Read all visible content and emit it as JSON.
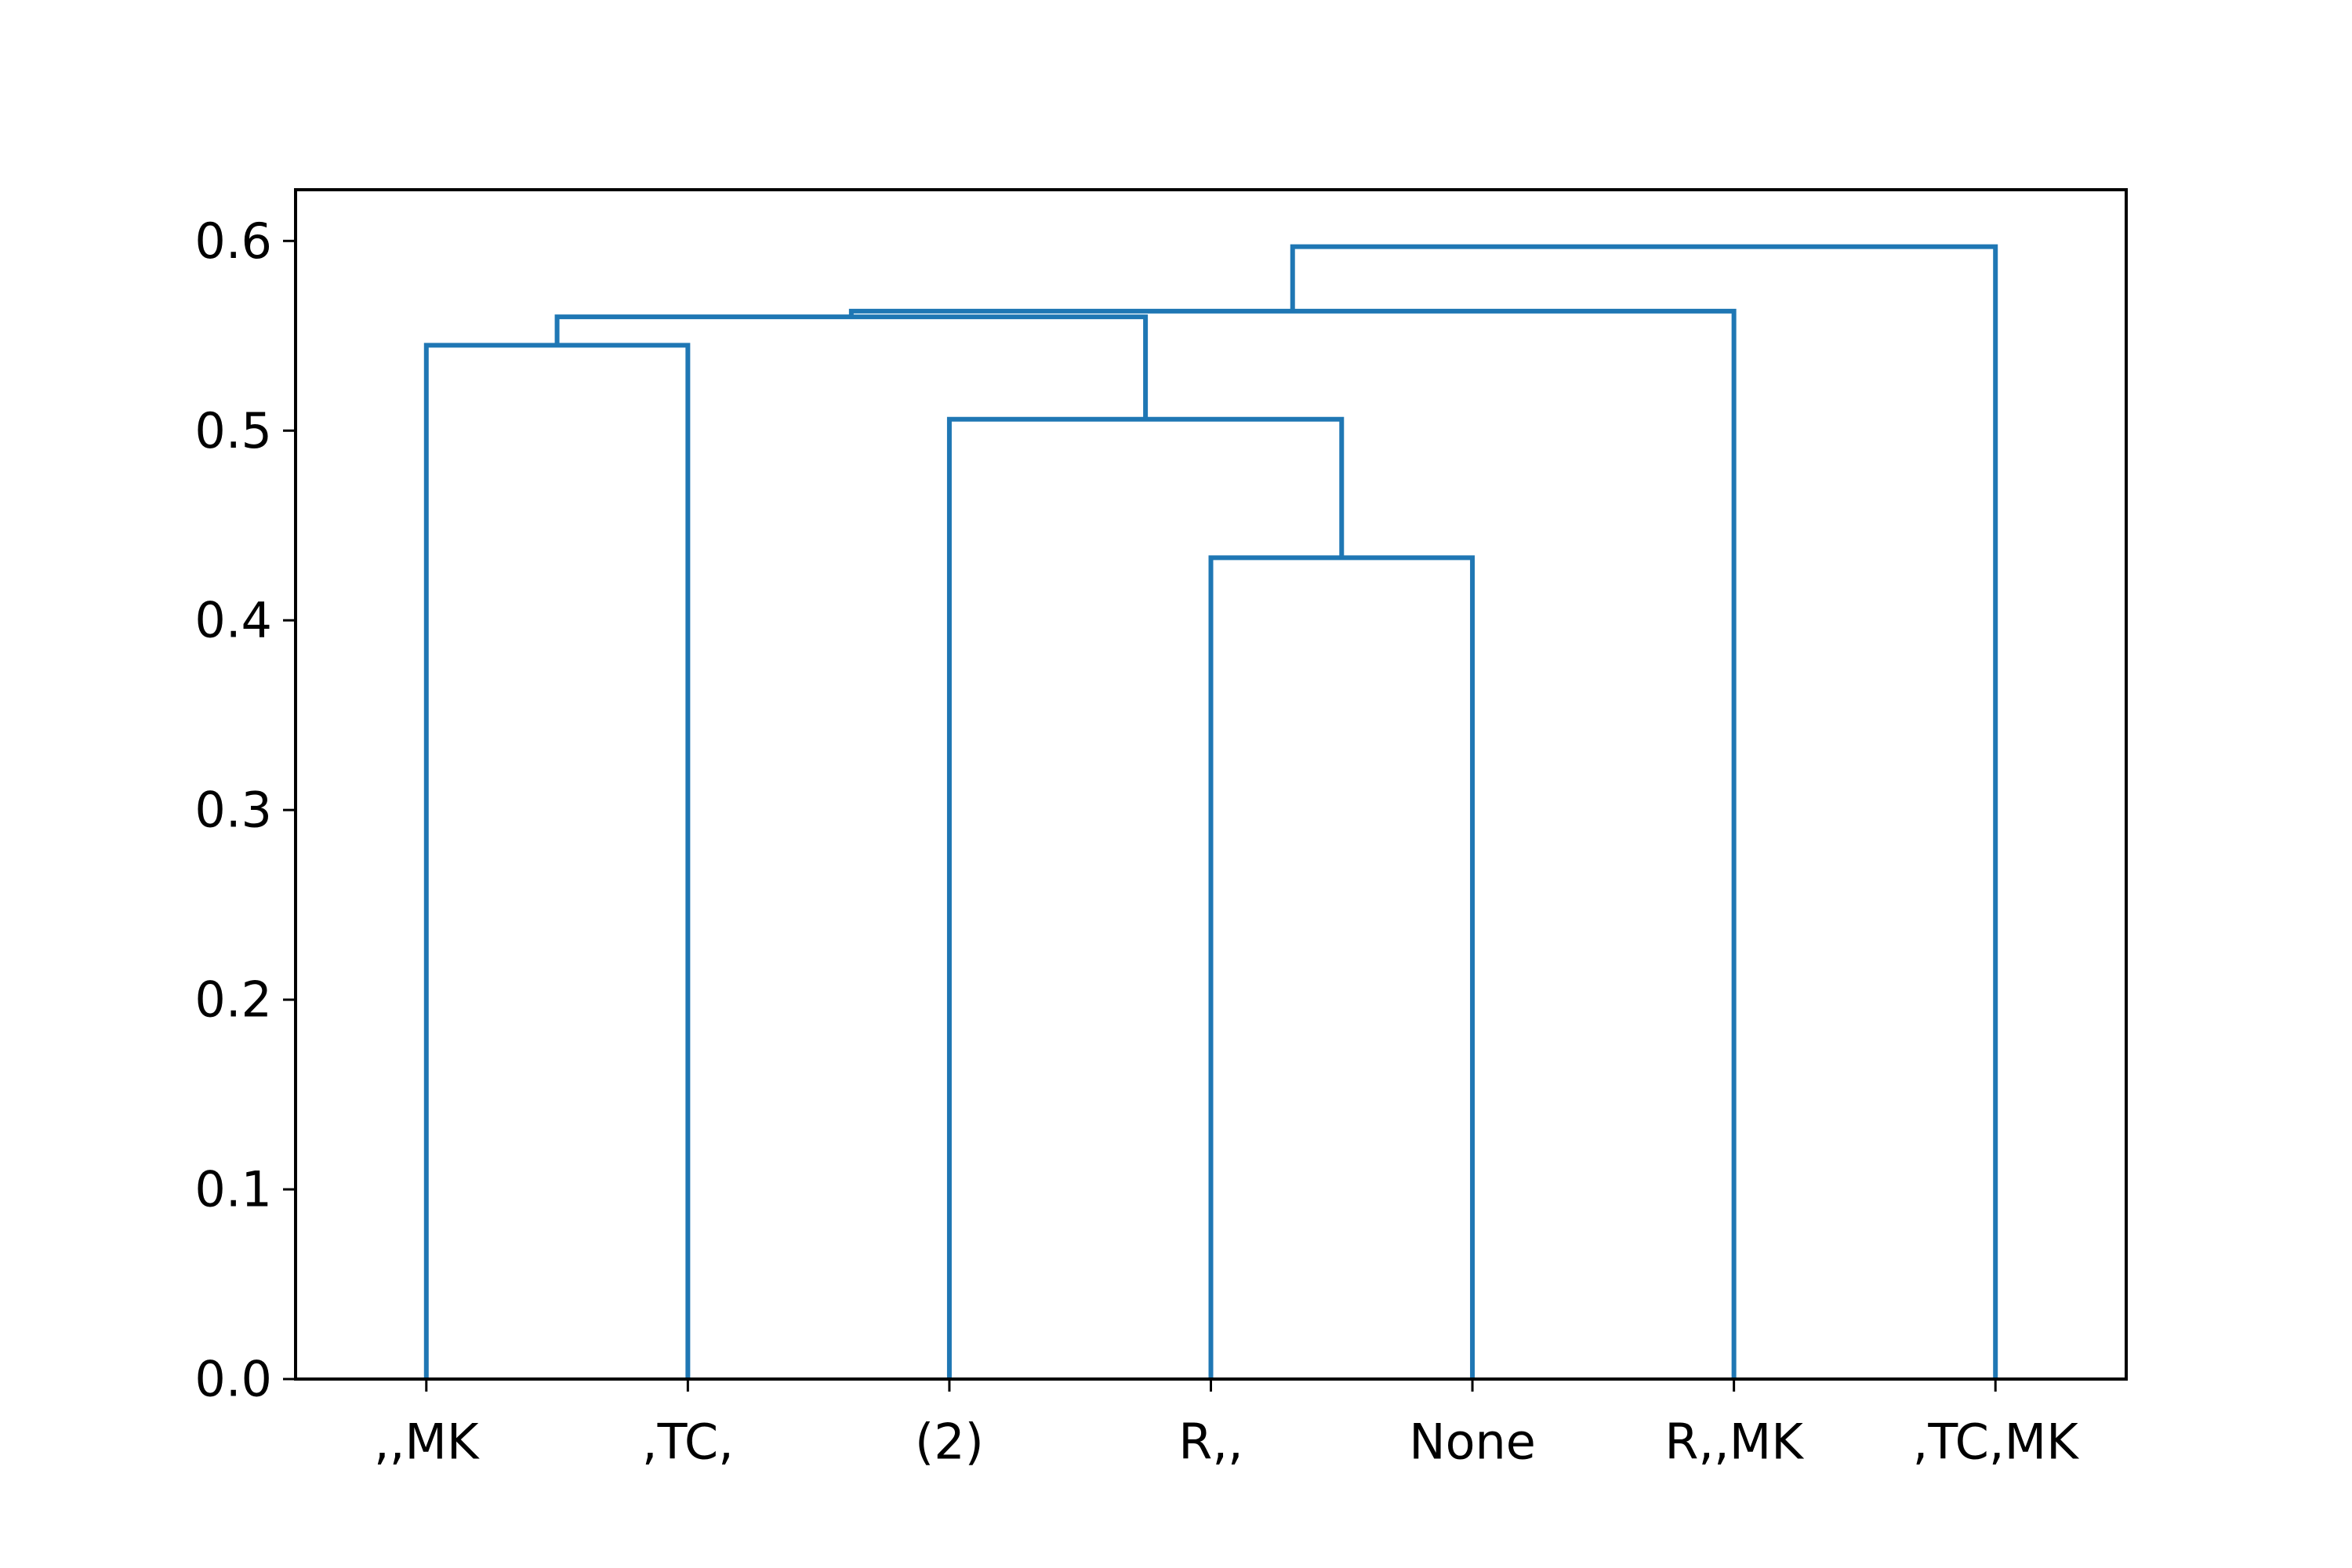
{
  "chart_data": {
    "type": "dendrogram",
    "title": "",
    "xlabel": "",
    "ylabel": "",
    "ylim": [
      0,
      0.627
    ],
    "y_ticks": [
      "0.0",
      "0.1",
      "0.2",
      "0.3",
      "0.4",
      "0.5",
      "0.6"
    ],
    "y_tick_values": [
      0.0,
      0.1,
      0.2,
      0.3,
      0.4,
      0.5,
      0.6
    ],
    "leaves": [
      ",,MK",
      ",TC,",
      "(2)",
      "R,,",
      "None",
      "R,,MK",
      ",TC,MK"
    ],
    "links": [
      {
        "left_leaf_index": 3,
        "right_leaf_index": 4,
        "height": 0.433
      },
      {
        "left_leaf_index": 2,
        "right_cluster": "R,,+None",
        "height": 0.506
      },
      {
        "left_leaf_index": 0,
        "right_leaf_index": 1,
        "height": 0.545
      },
      {
        "left_cluster": ",,MK+,TC,",
        "right_cluster": "(2)+R,,+None",
        "height": 0.56
      },
      {
        "left_cluster": ",,MK+,TC,+(2)+R,,+None",
        "right_leaf_index": 5,
        "height": 0.563
      },
      {
        "left_cluster": ",,MK+,TC,+(2)+R,,+None+R,,MK",
        "right_leaf_index": 6,
        "height": 0.597
      }
    ],
    "grid": false,
    "legend": "none",
    "colors": {
      "link": "#1f77b4",
      "axes": "#000000"
    }
  }
}
